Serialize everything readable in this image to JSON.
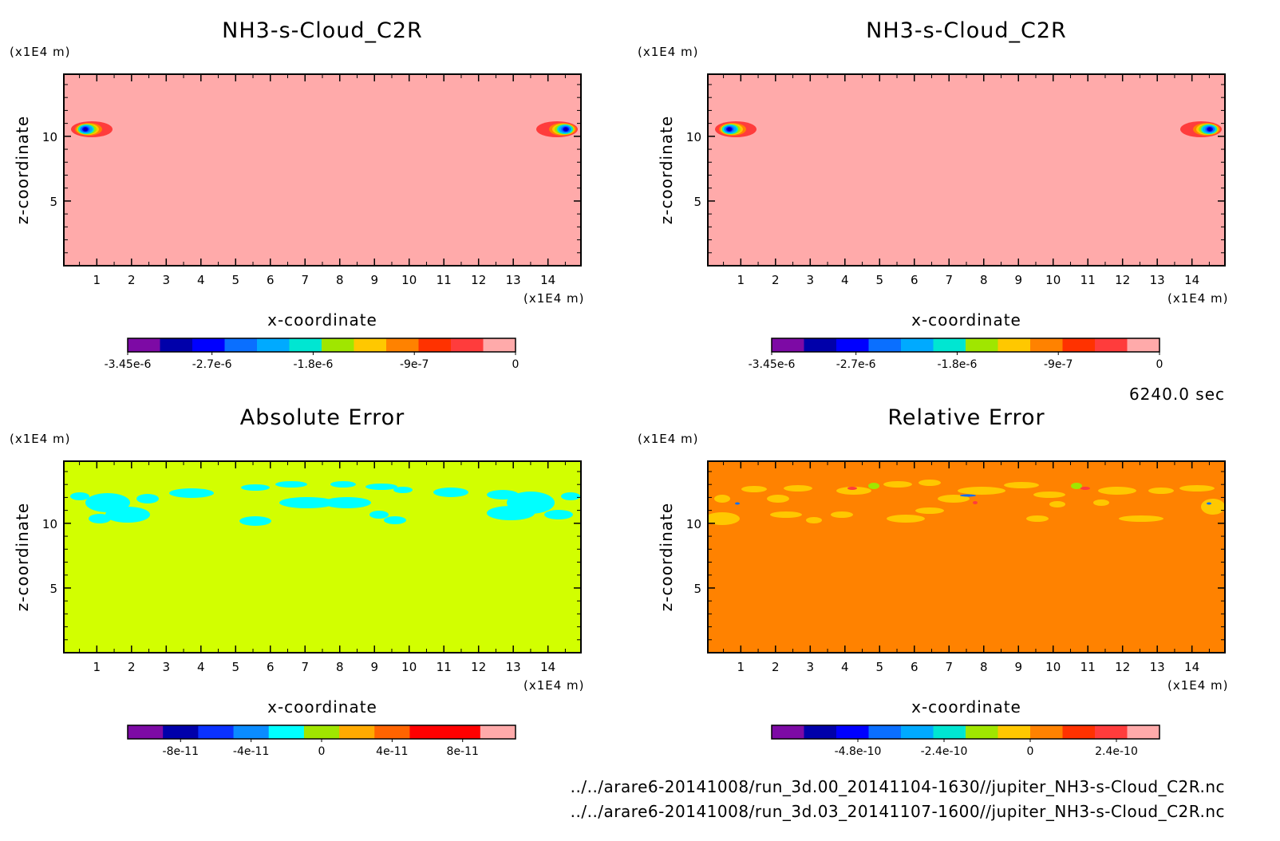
{
  "time_label": "6240.0 sec",
  "files": [
    "../../arare6-20141008/run_3d.00_20141104-1630//jupiter_NH3-s-Cloud_C2R.nc",
    "../../arare6-20141008/run_3d.03_20141107-1600//jupiter_NH3-s-Cloud_C2R.nc"
  ],
  "chart_data": [
    {
      "type": "heatmap",
      "title": "NH3-s-Cloud_C2R",
      "xlabel": "x-coordinate",
      "ylabel": "z-coordinate",
      "x_unit": "(x1E4 m)",
      "y_unit": "(x1E4 m)",
      "x_ticks": [
        1,
        2,
        3,
        4,
        5,
        6,
        7,
        8,
        9,
        10,
        11,
        12,
        13,
        14
      ],
      "y_ticks": [
        5,
        10
      ],
      "xlim": [
        0.05,
        14.95
      ],
      "ylim": [
        0,
        14.8
      ],
      "background_color": "#ffaaaa",
      "features": [
        {
          "x": 0.75,
          "z": 10.5,
          "min_value": -3.45e-06
        },
        {
          "x": 14.35,
          "z": 10.5,
          "min_value": -3.45e-06
        }
      ],
      "colorbar": {
        "colors": [
          "#7d0aa5",
          "#0000aa",
          "#0000ff",
          "#0a6fff",
          "#00aaff",
          "#00e6d2",
          "#a0e600",
          "#ffc800",
          "#ff8200",
          "#ff3200",
          "#ff3c3c",
          "#ffaaaa"
        ],
        "range": [
          -3.45e-06,
          0
        ],
        "tick_values": [
          -3.45e-06,
          -2.7e-06,
          -1.8e-06,
          -9e-07,
          0
        ],
        "tick_labels": [
          "-3.45e-6",
          "-2.7e-6",
          "-1.8e-6",
          "-9e-7",
          "0"
        ]
      }
    },
    {
      "type": "heatmap",
      "title": "NH3-s-Cloud_C2R",
      "xlabel": "x-coordinate",
      "ylabel": "z-coordinate",
      "x_unit": "(x1E4 m)",
      "y_unit": "(x1E4 m)",
      "x_ticks": [
        1,
        2,
        3,
        4,
        5,
        6,
        7,
        8,
        9,
        10,
        11,
        12,
        13,
        14
      ],
      "y_ticks": [
        5,
        10
      ],
      "xlim": [
        0.05,
        14.95
      ],
      "ylim": [
        0,
        14.8
      ],
      "background_color": "#ffaaaa",
      "features": [
        {
          "x": 0.75,
          "z": 10.5,
          "min_value": -3.45e-06
        },
        {
          "x": 14.35,
          "z": 10.5,
          "min_value": -3.45e-06
        }
      ],
      "colorbar": {
        "colors": [
          "#7d0aa5",
          "#0000aa",
          "#0000ff",
          "#0a6fff",
          "#00aaff",
          "#00e6d2",
          "#a0e600",
          "#ffc800",
          "#ff8200",
          "#ff3200",
          "#ff3c3c",
          "#ffaaaa"
        ],
        "range": [
          -3.45e-06,
          0
        ],
        "tick_values": [
          -3.45e-06,
          -2.7e-06,
          -1.8e-06,
          -9e-07,
          0
        ],
        "tick_labels": [
          "-3.45e-6",
          "-2.7e-6",
          "-1.8e-6",
          "-9e-7",
          "0"
        ]
      }
    },
    {
      "type": "heatmap",
      "title": "Absolute Error",
      "xlabel": "x-coordinate",
      "ylabel": "z-coordinate",
      "x_unit": "(x1E4 m)",
      "y_unit": "(x1E4 m)",
      "x_ticks": [
        1,
        2,
        3,
        4,
        5,
        6,
        7,
        8,
        9,
        10,
        11,
        12,
        13,
        14
      ],
      "y_ticks": [
        5,
        10
      ],
      "xlim": [
        0.05,
        14.95
      ],
      "ylim": [
        0,
        14.8
      ],
      "background_color": "#d2ff00",
      "features": [],
      "colorbar": {
        "colors": [
          "#7d0aa5",
          "#0000aa",
          "#0a32ff",
          "#0a8cff",
          "#00ffff",
          "#a0e600",
          "#ffaa00",
          "#ff6400",
          "#ff0000",
          "#ff0000",
          "#ffaaaa"
        ],
        "range": [
          -1.1e-10,
          1.1e-10
        ],
        "tick_values": [
          -8e-11,
          -4e-11,
          0,
          4e-11,
          8e-11
        ],
        "tick_labels": [
          "-8e-11",
          "-4e-11",
          "0",
          "4e-11",
          "8e-11"
        ]
      }
    },
    {
      "type": "heatmap",
      "title": "Relative Error",
      "xlabel": "x-coordinate",
      "ylabel": "z-coordinate",
      "x_unit": "(x1E4 m)",
      "y_unit": "(x1E4 m)",
      "x_ticks": [
        1,
        2,
        3,
        4,
        5,
        6,
        7,
        8,
        9,
        10,
        11,
        12,
        13,
        14
      ],
      "y_ticks": [
        5,
        10
      ],
      "xlim": [
        0.05,
        14.95
      ],
      "ylim": [
        0,
        14.8
      ],
      "background_color": "#ff8200",
      "features": [],
      "colorbar": {
        "colors": [
          "#7d0aa5",
          "#0000aa",
          "#0000ff",
          "#0a6fff",
          "#00aaff",
          "#00e6d2",
          "#a0e600",
          "#ffc800",
          "#ff8200",
          "#ff3200",
          "#ff3c3c",
          "#ffaaaa"
        ],
        "range": [
          -7.2e-10,
          3.6e-10
        ],
        "tick_values": [
          -4.8e-10,
          -2.4e-10,
          0,
          2.4e-10
        ],
        "tick_labels": [
          "-4.8e-10",
          "-2.4e-10",
          "0",
          "2.4e-10"
        ]
      }
    }
  ]
}
